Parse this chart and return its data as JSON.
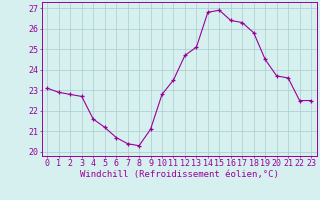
{
  "x": [
    0,
    1,
    2,
    3,
    4,
    5,
    6,
    7,
    8,
    9,
    10,
    11,
    12,
    13,
    14,
    15,
    16,
    17,
    18,
    19,
    20,
    21,
    22,
    23
  ],
  "y": [
    23.1,
    22.9,
    22.8,
    22.7,
    21.6,
    21.2,
    20.7,
    20.4,
    20.3,
    21.1,
    22.8,
    23.5,
    24.7,
    25.1,
    26.8,
    26.9,
    26.4,
    26.3,
    25.8,
    24.5,
    23.7,
    23.6,
    22.5,
    22.5
  ],
  "line_color": "#990099",
  "marker": "+",
  "marker_size": 3.5,
  "bg_color": "#d6f0f0",
  "grid_color": "#aacccc",
  "xlabel": "Windchill (Refroidissement éolien,°C)",
  "ylabel_ticks": [
    20,
    21,
    22,
    23,
    24,
    25,
    26,
    27
  ],
  "xticks": [
    0,
    1,
    2,
    3,
    4,
    5,
    6,
    7,
    8,
    9,
    10,
    11,
    12,
    13,
    14,
    15,
    16,
    17,
    18,
    19,
    20,
    21,
    22,
    23
  ],
  "xlim": [
    -0.5,
    23.5
  ],
  "ylim": [
    19.8,
    27.3
  ],
  "xlabel_fontsize": 6.5,
  "tick_fontsize": 6.0,
  "label_color": "#990099",
  "spine_color": "#888888"
}
